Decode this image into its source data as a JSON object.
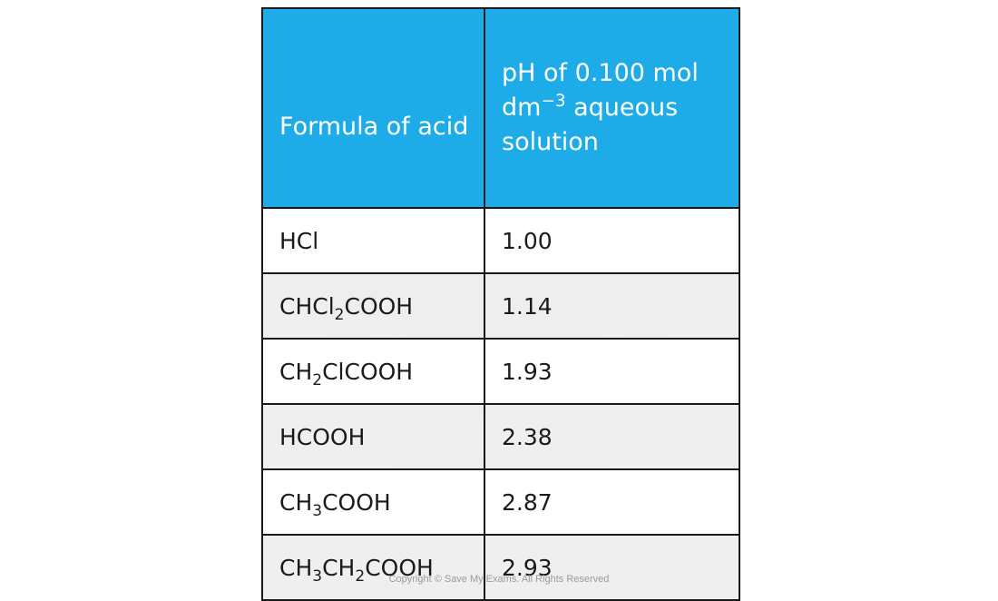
{
  "table": {
    "headers": {
      "formula": "Formula of acid",
      "ph_prefix": "pH of 0.100 mol dm",
      "ph_superscript": "−3",
      "ph_suffix": " aqueous solution"
    },
    "rows": [
      {
        "formula": [
          {
            "t": "HCl"
          }
        ],
        "ph": "1.00"
      },
      {
        "formula": [
          {
            "t": "CHCl"
          },
          {
            "sub": "2"
          },
          {
            "t": "COOH"
          }
        ],
        "ph": "1.14"
      },
      {
        "formula": [
          {
            "t": "CH"
          },
          {
            "sub": "2"
          },
          {
            "t": "ClCOOH"
          }
        ],
        "ph": "1.93"
      },
      {
        "formula": [
          {
            "t": "HCOOH"
          }
        ],
        "ph": "2.38"
      },
      {
        "formula": [
          {
            "t": "CH"
          },
          {
            "sub": "3"
          },
          {
            "t": "COOH"
          }
        ],
        "ph": "2.87"
      },
      {
        "formula": [
          {
            "t": "CH"
          },
          {
            "sub": "3"
          },
          {
            "t": "CH"
          },
          {
            "sub": "2"
          },
          {
            "t": "COOH"
          }
        ],
        "ph": "2.93"
      }
    ]
  },
  "footer": {
    "copyright": "Copyright © Save My Exams. All Rights Reserved"
  }
}
